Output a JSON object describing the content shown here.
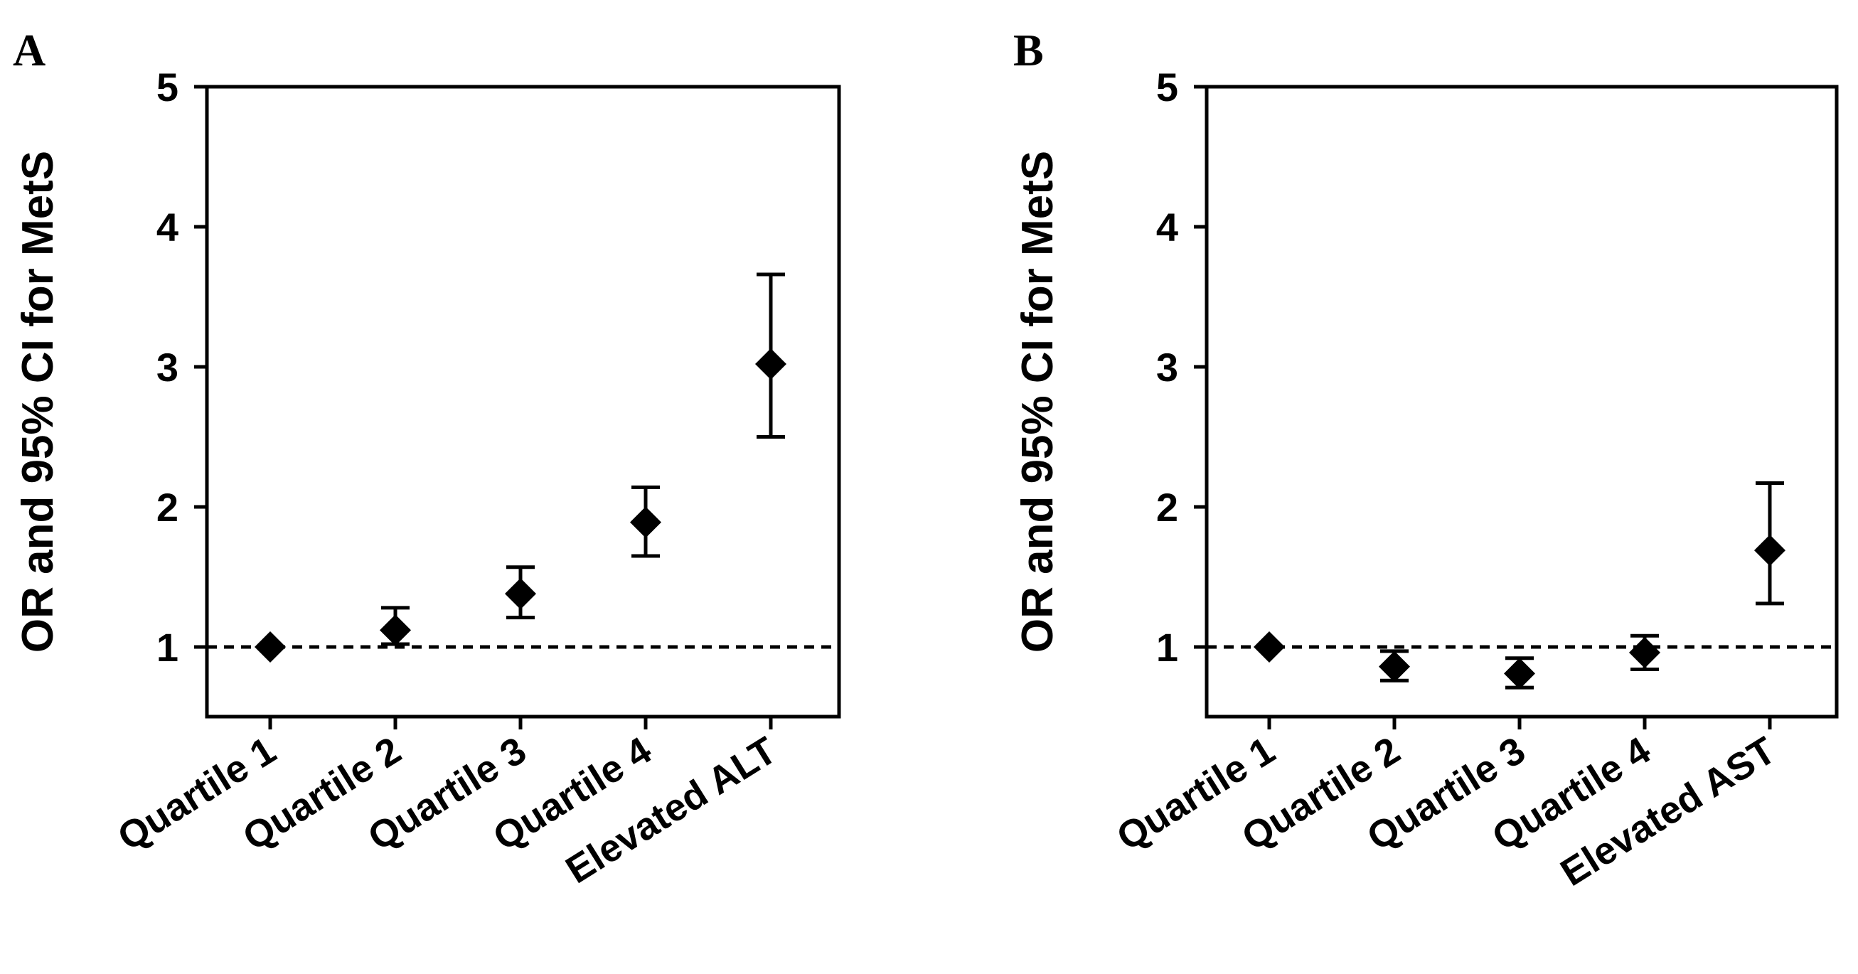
{
  "chart_data": [
    {
      "type": "scatter",
      "panel_label": "A",
      "title": "",
      "xlabel": "",
      "ylabel": "OR and 95% CI for MetS",
      "categories": [
        "Quartile 1",
        "Quartile 2",
        "Quartile 3",
        "Quartile 4",
        "Elevated ALT"
      ],
      "values": [
        1.0,
        1.12,
        1.38,
        1.89,
        3.02
      ],
      "ci_lower": [
        1.0,
        1.02,
        1.21,
        1.65,
        2.5
      ],
      "ci_upper": [
        1.0,
        1.28,
        1.57,
        2.14,
        3.66
      ],
      "yticks": [
        "1",
        "2",
        "3",
        "4",
        "5"
      ],
      "ylim": [
        0.5,
        5
      ],
      "reference_line": 1,
      "reference_style": "dashed",
      "marker": "diamond",
      "grid": false,
      "legend": "none"
    },
    {
      "type": "scatter",
      "panel_label": "B",
      "title": "",
      "xlabel": "",
      "ylabel": "OR and 95% CI for MetS",
      "categories": [
        "Quartile 1",
        "Quartile 2",
        "Quartile 3",
        "Quartile 4",
        "Elevated AST"
      ],
      "values": [
        1.0,
        0.86,
        0.81,
        0.96,
        1.69
      ],
      "ci_lower": [
        1.0,
        0.76,
        0.71,
        0.84,
        1.31
      ],
      "ci_upper": [
        1.0,
        0.97,
        0.92,
        1.08,
        2.17
      ],
      "yticks": [
        "1",
        "2",
        "3",
        "4",
        "5"
      ],
      "ylim": [
        0.5,
        5
      ],
      "reference_line": 1,
      "reference_style": "dashed",
      "marker": "diamond",
      "grid": false,
      "legend": "none"
    }
  ],
  "colors": {
    "ink": "#000000",
    "background": "#ffffff"
  }
}
